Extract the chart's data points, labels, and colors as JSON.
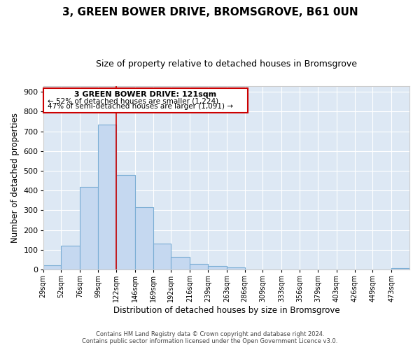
{
  "title": "3, GREEN BOWER DRIVE, BROMSGROVE, B61 0UN",
  "subtitle": "Size of property relative to detached houses in Bromsgrove",
  "xlabel": "Distribution of detached houses by size in Bromsgrove",
  "ylabel": "Number of detached properties",
  "bar_color": "#c5d8f0",
  "bar_edge_color": "#7aadd4",
  "bg_color": "#dde8f4",
  "fig_color": "#ffffff",
  "grid_color": "#ffffff",
  "annotation_box_color": "#cc0000",
  "vline_color": "#cc0000",
  "vline_x": 122,
  "annotation_title": "3 GREEN BOWER DRIVE: 121sqm",
  "annotation_line1": "← 52% of detached houses are smaller (1,224)",
  "annotation_line2": "47% of semi-detached houses are larger (1,091) →",
  "footnote1": "Contains HM Land Registry data © Crown copyright and database right 2024.",
  "footnote2": "Contains public sector information licensed under the Open Government Licence v3.0.",
  "bin_edges": [
    29,
    52,
    76,
    99,
    122,
    146,
    169,
    192,
    216,
    239,
    263,
    286,
    309,
    333,
    356,
    379,
    403,
    426,
    449,
    473,
    496
  ],
  "bin_counts": [
    20,
    122,
    418,
    733,
    480,
    316,
    133,
    65,
    28,
    18,
    10,
    0,
    0,
    0,
    0,
    0,
    0,
    0,
    0,
    8
  ],
  "ylim": [
    0,
    930
  ],
  "yticks": [
    0,
    100,
    200,
    300,
    400,
    500,
    600,
    700,
    800,
    900
  ]
}
